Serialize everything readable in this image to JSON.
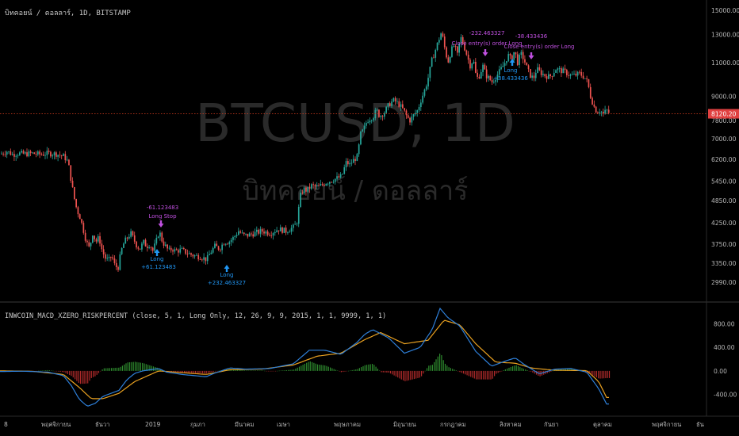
{
  "header": {
    "symbol_line": "บิทคอยน์ / ดอลลาร์, 1D, BITSTAMP"
  },
  "watermark": {
    "line1": "BTCUSD, 1D",
    "line2": "บิทคอยน์ / ดอลลาร์"
  },
  "indicator": {
    "title": "INWCOIN_MACD_XZERO_RISKPERCENT (close, 5, 1, Long Only, 12, 26, 9, 9, 2015, 1, 1, 9999, 1, 1)"
  },
  "price_axis": {
    "ticks": [
      "15000.00",
      "13000.00",
      "11000.00",
      "9000.00",
      "7800.00",
      "7000.00",
      "6200.00",
      "5450.00",
      "4850.00",
      "4250.00",
      "3750.00",
      "3350.00",
      "2990.00"
    ],
    "current_price": "8120.20"
  },
  "macd_axis": {
    "ticks": [
      "800.00",
      "400.00",
      "0.00",
      "-400.00"
    ]
  },
  "time_axis": {
    "labels": [
      "8",
      "พฤศจิกายน",
      "ธันวา",
      "2019",
      "กุมภา",
      "มีนาคม",
      "เมษา",
      "พฤษภาคม",
      "มิถุนายน",
      "กรกฎาคม",
      "สิงหาคม",
      "กันยา",
      "ตุลาคม",
      "พฤศจิกายน",
      "ธัน"
    ]
  },
  "annotations": [
    {
      "text": "-61.123483"
    },
    {
      "text": "Long Stop"
    },
    {
      "text": "Long"
    },
    {
      "text": "+61.123483"
    },
    {
      "text": "Long"
    },
    {
      "text": "+232.463327"
    },
    {
      "text": "-232.463327"
    },
    {
      "text": "Close entry(s) order Long"
    },
    {
      "text": "Long"
    },
    {
      "text": "+38.433436"
    },
    {
      "text": "-38.433436"
    },
    {
      "text": "Close entry(s) order Long"
    }
  ],
  "colors": {
    "background": "#000000",
    "up": "#26a69a",
    "down": "#ef5350",
    "macd_line": "#2e7fd8",
    "signal_line": "#e8a020",
    "hist_up": "#2e8b2e",
    "hist_down": "#b02a2a",
    "long_arrow": "#2196f3",
    "exit_arrow": "#c050e0",
    "price_line": "#e04020"
  },
  "chart_data": [
    {
      "type": "candlestick",
      "title": "",
      "series_name": "BTCUSD",
      "yscale": "log",
      "ylim": [
        2800,
        15500
      ],
      "x_labels": [
        "8",
        "พฤศจิกายน",
        "ธันวา",
        "2019",
        "กุมภา",
        "มีนาคม",
        "เมษา",
        "พฤษภาคม",
        "มิถุนายน",
        "กรกฎาคม",
        "สิงหาคม",
        "กันยา",
        "ตุลาคม",
        "พฤศจิกายน",
        "ธัน"
      ],
      "close_path": [
        [
          0,
          6400
        ],
        [
          8,
          6500
        ],
        [
          15,
          6380
        ],
        [
          22,
          6420
        ],
        [
          30,
          6400
        ],
        [
          40,
          6420
        ],
        [
          50,
          6380
        ],
        [
          60,
          6420
        ],
        [
          70,
          6400
        ],
        [
          80,
          6300
        ],
        [
          85,
          6100
        ],
        [
          88,
          5600
        ],
        [
          92,
          5000
        ],
        [
          96,
          4600
        ],
        [
          100,
          4400
        ],
        [
          104,
          4100
        ],
        [
          108,
          3800
        ],
        [
          112,
          3650
        ],
        [
          116,
          4000
        ],
        [
          120,
          3800
        ],
        [
          124,
          3900
        ],
        [
          128,
          3600
        ],
        [
          132,
          3450
        ],
        [
          136,
          3400
        ],
        [
          140,
          3500
        ],
        [
          144,
          3300
        ],
        [
          148,
          3250
        ],
        [
          152,
          3600
        ],
        [
          156,
          3800
        ],
        [
          160,
          3900
        ],
        [
          164,
          4000
        ],
        [
          168,
          3850
        ],
        [
          172,
          3700
        ],
        [
          176,
          3650
        ],
        [
          180,
          3800
        ],
        [
          184,
          3700
        ],
        [
          188,
          3750
        ],
        [
          192,
          3600
        ],
        [
          196,
          3800
        ],
        [
          200,
          4050
        ],
        [
          204,
          3800
        ],
        [
          208,
          3700
        ],
        [
          212,
          3600
        ],
        [
          216,
          3650
        ],
        [
          220,
          3600
        ],
        [
          228,
          3620
        ],
        [
          236,
          3550
        ],
        [
          244,
          3500
        ],
        [
          252,
          3480
        ],
        [
          260,
          3420
        ],
        [
          264,
          3550
        ],
        [
          270,
          3700
        ],
        [
          276,
          3650
        ],
        [
          282,
          3800
        ],
        [
          288,
          3800
        ],
        [
          294,
          3900
        ],
        [
          300,
          4050
        ],
        [
          306,
          3950
        ],
        [
          312,
          3950
        ],
        [
          320,
          4000
        ],
        [
          330,
          4050
        ],
        [
          340,
          4000
        ],
        [
          350,
          4100
        ],
        [
          360,
          4050
        ],
        [
          370,
          4150
        ],
        [
          374,
          4300
        ],
        [
          378,
          5000
        ],
        [
          382,
          5200
        ],
        [
          386,
          5150
        ],
        [
          392,
          5300
        ],
        [
          400,
          5250
        ],
        [
          410,
          5400
        ],
        [
          420,
          5500
        ],
        [
          430,
          5600
        ],
        [
          436,
          6100
        ],
        [
          440,
          6000
        ],
        [
          446,
          6200
        ],
        [
          450,
          6300
        ],
        [
          454,
          7200
        ],
        [
          458,
          7400
        ],
        [
          462,
          7800
        ],
        [
          466,
          7900
        ],
        [
          470,
          8000
        ],
        [
          474,
          8300
        ],
        [
          478,
          8000
        ],
        [
          484,
          8200
        ],
        [
          490,
          8600
        ],
        [
          496,
          8800
        ],
        [
          502,
          8600
        ],
        [
          508,
          8300
        ],
        [
          512,
          8000
        ],
        [
          516,
          7800
        ],
        [
          520,
          8000
        ],
        [
          526,
          8300
        ],
        [
          530,
          8800
        ],
        [
          536,
          9500
        ],
        [
          540,
          10200
        ],
        [
          544,
          11200
        ],
        [
          548,
          11800
        ],
        [
          552,
          12500
        ],
        [
          556,
          13200
        ],
        [
          560,
          12000
        ],
        [
          564,
          11000
        ],
        [
          568,
          11800
        ],
        [
          572,
          12200
        ],
        [
          576,
          11500
        ],
        [
          580,
          12800
        ],
        [
          584,
          12200
        ],
        [
          588,
          11500
        ],
        [
          592,
          10800
        ],
        [
          596,
          11200
        ],
        [
          600,
          10000
        ],
        [
          604,
          10200
        ],
        [
          608,
          10800
        ],
        [
          612,
          10200
        ],
        [
          616,
          10000
        ],
        [
          620,
          9800
        ],
        [
          626,
          10200
        ],
        [
          630,
          10500
        ],
        [
          636,
          11000
        ],
        [
          640,
          11500
        ],
        [
          644,
          11200
        ],
        [
          648,
          11800
        ],
        [
          652,
          11000
        ],
        [
          656,
          11600
        ],
        [
          660,
          11200
        ],
        [
          664,
          10600
        ],
        [
          668,
          10200
        ],
        [
          672,
          10000
        ],
        [
          676,
          10600
        ],
        [
          680,
          10400
        ],
        [
          686,
          10200
        ],
        [
          692,
          10100
        ],
        [
          696,
          10300
        ],
        [
          700,
          10600
        ],
        [
          706,
          10500
        ],
        [
          712,
          10400
        ],
        [
          718,
          10200
        ],
        [
          724,
          10200
        ],
        [
          730,
          10300
        ],
        [
          736,
          10100
        ],
        [
          740,
          9800
        ],
        [
          744,
          9000
        ],
        [
          748,
          8500
        ],
        [
          752,
          8200
        ],
        [
          756,
          8300
        ],
        [
          760,
          8100
        ],
        [
          764,
          8300
        ],
        [
          768,
          8120
        ]
      ]
    },
    {
      "type": "line+histogram",
      "title": "INWCOIN_MACD_XZERO_RISKPERCENT",
      "ylim": [
        -700,
        1100
      ],
      "macd": [
        [
          0,
          -10
        ],
        [
          30,
          -5
        ],
        [
          60,
          -20
        ],
        [
          80,
          -80
        ],
        [
          90,
          -250
        ],
        [
          100,
          -480
        ],
        [
          110,
          -600
        ],
        [
          120,
          -550
        ],
        [
          130,
          -430
        ],
        [
          140,
          -380
        ],
        [
          150,
          -330
        ],
        [
          160,
          -150
        ],
        [
          170,
          -40
        ],
        [
          180,
          0
        ],
        [
          200,
          40
        ],
        [
          210,
          -20
        ],
        [
          230,
          -60
        ],
        [
          260,
          -100
        ],
        [
          270,
          -40
        ],
        [
          290,
          50
        ],
        [
          310,
          30
        ],
        [
          340,
          40
        ],
        [
          370,
          120
        ],
        [
          390,
          350
        ],
        [
          410,
          350
        ],
        [
          430,
          280
        ],
        [
          450,
          480
        ],
        [
          460,
          620
        ],
        [
          470,
          700
        ],
        [
          490,
          560
        ],
        [
          510,
          300
        ],
        [
          530,
          400
        ],
        [
          545,
          700
        ],
        [
          555,
          1060
        ],
        [
          565,
          900
        ],
        [
          580,
          760
        ],
        [
          600,
          330
        ],
        [
          620,
          80
        ],
        [
          640,
          180
        ],
        [
          650,
          220
        ],
        [
          660,
          120
        ],
        [
          680,
          -50
        ],
        [
          700,
          30
        ],
        [
          720,
          40
        ],
        [
          740,
          -20
        ],
        [
          755,
          -300
        ],
        [
          765,
          -560
        ]
      ],
      "signal": [
        [
          0,
          0
        ],
        [
          40,
          -5
        ],
        [
          80,
          -60
        ],
        [
          100,
          -280
        ],
        [
          115,
          -470
        ],
        [
          130,
          -470
        ],
        [
          150,
          -380
        ],
        [
          170,
          -180
        ],
        [
          200,
          0
        ],
        [
          230,
          -30
        ],
        [
          260,
          -60
        ],
        [
          290,
          20
        ],
        [
          330,
          30
        ],
        [
          370,
          100
        ],
        [
          400,
          250
        ],
        [
          430,
          300
        ],
        [
          460,
          530
        ],
        [
          480,
          650
        ],
        [
          510,
          460
        ],
        [
          540,
          520
        ],
        [
          560,
          860
        ],
        [
          580,
          780
        ],
        [
          600,
          460
        ],
        [
          625,
          150
        ],
        [
          650,
          130
        ],
        [
          670,
          50
        ],
        [
          700,
          10
        ],
        [
          740,
          5
        ],
        [
          755,
          -180
        ],
        [
          765,
          -450
        ]
      ]
    }
  ]
}
